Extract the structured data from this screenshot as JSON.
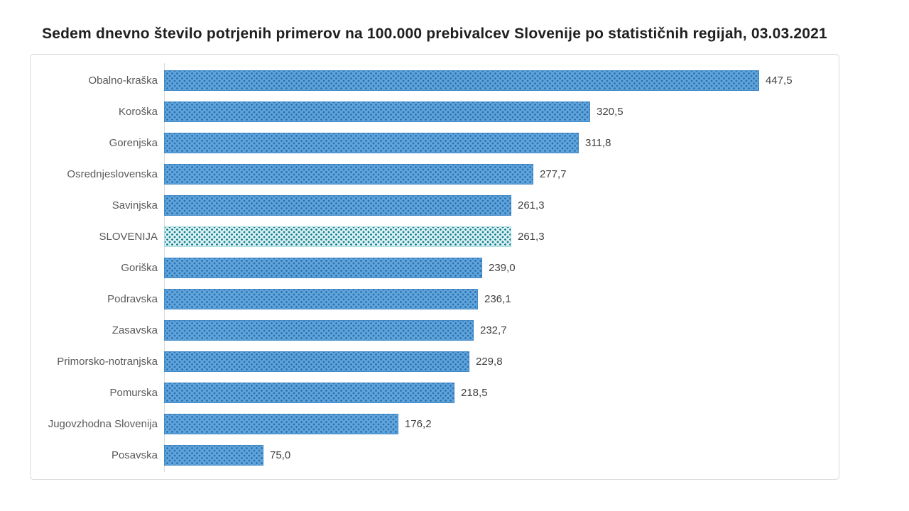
{
  "title": "Sedem dnevno število potrjenih primerov na 100.000 prebivalcev Slovenije po statističnih regijah, 03.03.2021",
  "chart_data": {
    "type": "bar",
    "orientation": "horizontal",
    "categories": [
      "Obalno-kraška",
      "Koroška",
      "Gorenjska",
      "Osrednjeslovenska",
      "Savinjska",
      "SLOVENIJA",
      "Goriška",
      "Podravska",
      "Zasavska",
      "Primorsko-notranjska",
      "Pomurska",
      "Jugovzhodna Slovenija",
      "Posavska"
    ],
    "values": [
      447.5,
      320.5,
      311.8,
      277.7,
      261.3,
      261.3,
      239.0,
      236.1,
      232.7,
      229.8,
      218.5,
      176.2,
      75.0
    ],
    "value_labels": [
      "447,5",
      "320,5",
      "311,8",
      "277,7",
      "261,3",
      "261,3",
      "239,0",
      "236,1",
      "232,7",
      "229,8",
      "218,5",
      "176,2",
      "75,0"
    ],
    "highlight_category": "SLOVENIJA",
    "xlim": [
      0,
      450
    ],
    "grid": false,
    "legend": false,
    "ylabel": "",
    "xlabel": ""
  },
  "colors": {
    "title_color": "#1f1f1f",
    "frame_border": "#d9d9d9",
    "axis_line": "#d9d9d9",
    "label_color": "#595959",
    "value_color": "#404040",
    "bar_base": "#5fa4dc",
    "bar_dot": "#2f73ae",
    "bar_edge": "#4189c7",
    "highlight_base": "#daf0f2",
    "highlight_dot": "#15808f",
    "highlight_edge": "#a9dade"
  }
}
